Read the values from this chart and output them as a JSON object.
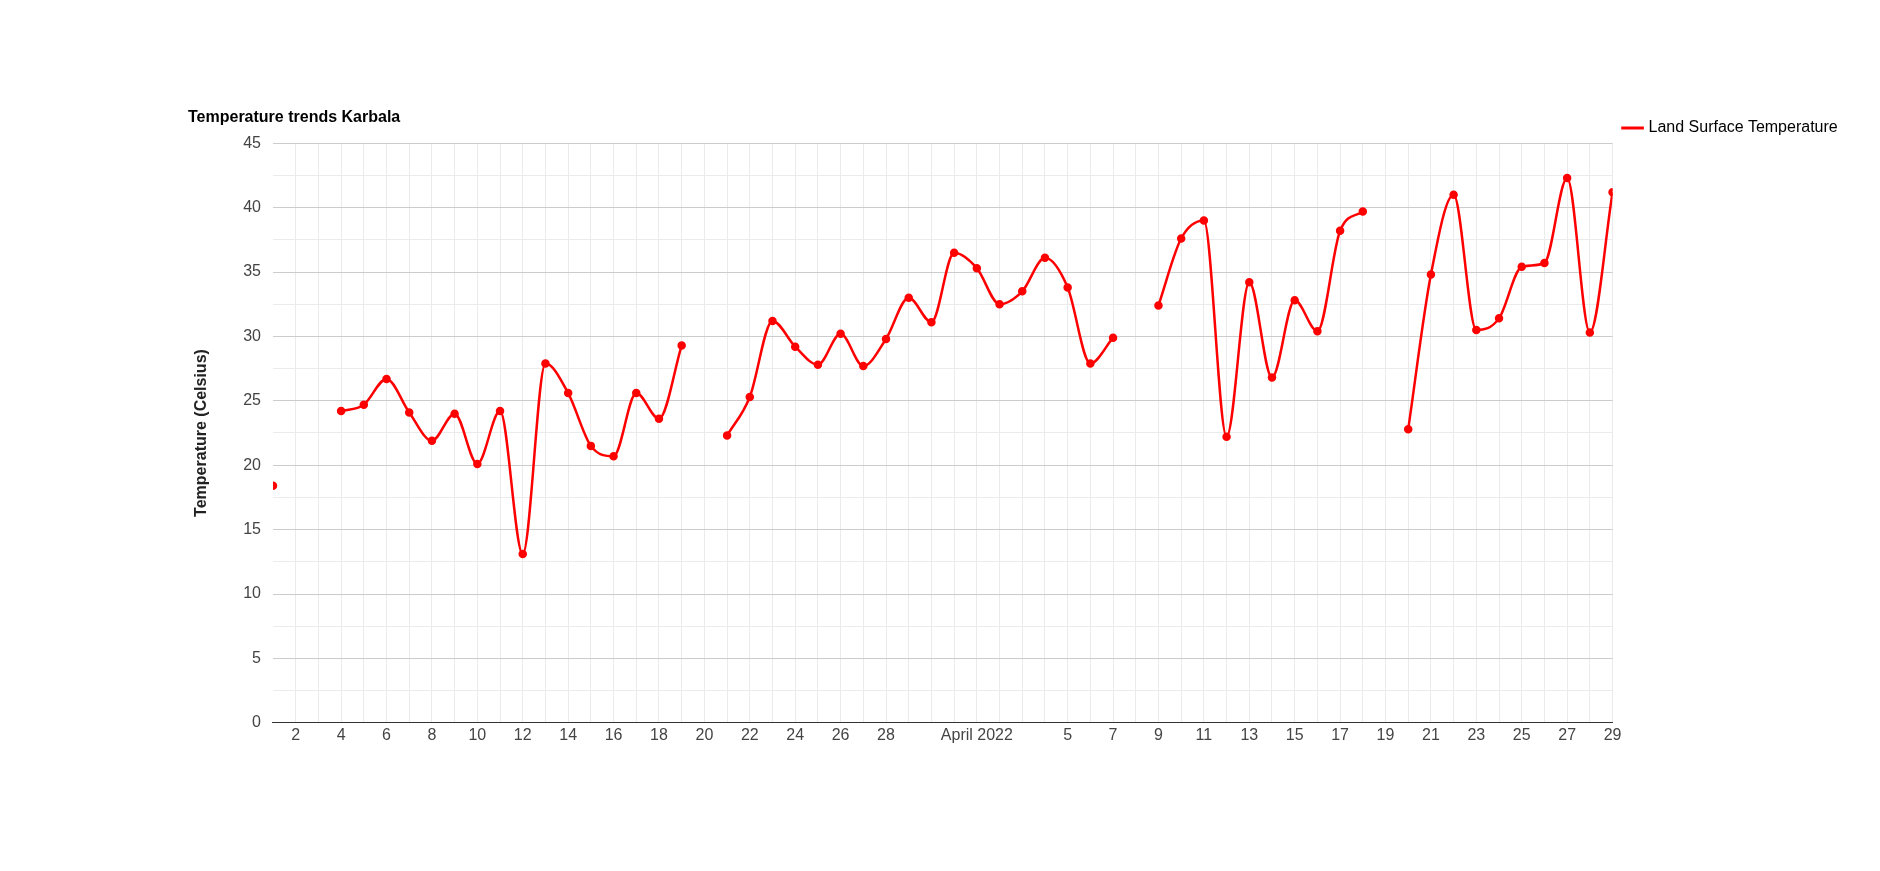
{
  "chart_data": {
    "type": "line",
    "title": "Temperature trends Karbala",
    "ylabel": "Temperature (Celsius)",
    "x": [
      "2022-03-01",
      "2022-03-02",
      "2022-03-03",
      "2022-03-04",
      "2022-03-05",
      "2022-03-06",
      "2022-03-07",
      "2022-03-08",
      "2022-03-09",
      "2022-03-10",
      "2022-03-11",
      "2022-03-12",
      "2022-03-13",
      "2022-03-14",
      "2022-03-15",
      "2022-03-16",
      "2022-03-17",
      "2022-03-18",
      "2022-03-19",
      "2022-03-20",
      "2022-03-21",
      "2022-03-22",
      "2022-03-23",
      "2022-03-24",
      "2022-03-25",
      "2022-03-26",
      "2022-03-27",
      "2022-03-28",
      "2022-03-29",
      "2022-03-30",
      "2022-03-31",
      "2022-04-01",
      "2022-04-02",
      "2022-04-03",
      "2022-04-04",
      "2022-04-05",
      "2022-04-06",
      "2022-04-07",
      "2022-04-08",
      "2022-04-09",
      "2022-04-10",
      "2022-04-11",
      "2022-04-12",
      "2022-04-13",
      "2022-04-14",
      "2022-04-15",
      "2022-04-16",
      "2022-04-17",
      "2022-04-18",
      "2022-04-19",
      "2022-04-20",
      "2022-04-21",
      "2022-04-22",
      "2022-04-23",
      "2022-04-24",
      "2022-04-25",
      "2022-04-26",
      "2022-04-27",
      "2022-04-28",
      "2022-04-29"
    ],
    "series": [
      {
        "name": "Land Surface Temperature",
        "color": "#ff0000",
        "values": [
          18.4,
          null,
          null,
          24.2,
          24.7,
          26.7,
          24.1,
          21.9,
          24.0,
          20.1,
          24.2,
          13.1,
          27.9,
          25.6,
          21.5,
          20.7,
          25.6,
          23.6,
          29.3,
          null,
          22.3,
          25.3,
          31.2,
          29.2,
          27.8,
          30.2,
          27.7,
          29.8,
          33.0,
          31.1,
          36.5,
          35.3,
          32.5,
          33.5,
          36.1,
          33.8,
          27.9,
          29.9,
          null,
          32.4,
          37.6,
          39.0,
          22.2,
          34.2,
          26.8,
          32.8,
          30.4,
          38.2,
          39.7,
          null,
          22.8,
          34.8,
          41.0,
          30.5,
          31.4,
          35.4,
          35.7,
          42.3,
          30.3,
          41.2
        ]
      }
    ],
    "xlim": [
      "2022-03-01",
      "2022-04-29"
    ],
    "xticks": [
      {
        "value": "2022-03-02",
        "label": "2"
      },
      {
        "value": "2022-03-03",
        "label": null
      },
      {
        "value": "2022-03-04",
        "label": "4"
      },
      {
        "value": "2022-03-05",
        "label": null
      },
      {
        "value": "2022-03-06",
        "label": "6"
      },
      {
        "value": "2022-03-07",
        "label": null
      },
      {
        "value": "2022-03-08",
        "label": "8"
      },
      {
        "value": "2022-03-09",
        "label": null
      },
      {
        "value": "2022-03-10",
        "label": "10"
      },
      {
        "value": "2022-03-11",
        "label": null
      },
      {
        "value": "2022-03-12",
        "label": "12"
      },
      {
        "value": "2022-03-13",
        "label": null
      },
      {
        "value": "2022-03-14",
        "label": "14"
      },
      {
        "value": "2022-03-15",
        "label": null
      },
      {
        "value": "2022-03-16",
        "label": "16"
      },
      {
        "value": "2022-03-17",
        "label": null
      },
      {
        "value": "2022-03-18",
        "label": "18"
      },
      {
        "value": "2022-03-19",
        "label": null
      },
      {
        "value": "2022-03-20",
        "label": "20"
      },
      {
        "value": "2022-03-21",
        "label": null
      },
      {
        "value": "2022-03-22",
        "label": "22"
      },
      {
        "value": "2022-03-23",
        "label": null
      },
      {
        "value": "2022-03-24",
        "label": "24"
      },
      {
        "value": "2022-03-25",
        "label": null
      },
      {
        "value": "2022-03-26",
        "label": "26"
      },
      {
        "value": "2022-03-27",
        "label": null
      },
      {
        "value": "2022-03-28",
        "label": "28"
      },
      {
        "value": "2022-03-29",
        "label": null
      },
      {
        "value": "2022-03-30",
        "label": null
      },
      {
        "value": "2022-03-31",
        "label": null
      },
      {
        "value": "2022-04-01",
        "label": "April 2022"
      },
      {
        "value": "2022-04-02",
        "label": null
      },
      {
        "value": "2022-04-03",
        "label": null
      },
      {
        "value": "2022-04-04",
        "label": null
      },
      {
        "value": "2022-04-05",
        "label": "5"
      },
      {
        "value": "2022-04-06",
        "label": null
      },
      {
        "value": "2022-04-07",
        "label": "7"
      },
      {
        "value": "2022-04-08",
        "label": null
      },
      {
        "value": "2022-04-09",
        "label": "9"
      },
      {
        "value": "2022-04-10",
        "label": null
      },
      {
        "value": "2022-04-11",
        "label": "11"
      },
      {
        "value": "2022-04-12",
        "label": null
      },
      {
        "value": "2022-04-13",
        "label": "13"
      },
      {
        "value": "2022-04-14",
        "label": null
      },
      {
        "value": "2022-04-15",
        "label": "15"
      },
      {
        "value": "2022-04-16",
        "label": null
      },
      {
        "value": "2022-04-17",
        "label": "17"
      },
      {
        "value": "2022-04-18",
        "label": null
      },
      {
        "value": "2022-04-19",
        "label": "19"
      },
      {
        "value": "2022-04-20",
        "label": null
      },
      {
        "value": "2022-04-21",
        "label": "21"
      },
      {
        "value": "2022-04-22",
        "label": null
      },
      {
        "value": "2022-04-23",
        "label": "23"
      },
      {
        "value": "2022-04-24",
        "label": null
      },
      {
        "value": "2022-04-25",
        "label": "25"
      },
      {
        "value": "2022-04-26",
        "label": null
      },
      {
        "value": "2022-04-27",
        "label": "27"
      },
      {
        "value": "2022-04-28",
        "label": null
      },
      {
        "value": "2022-04-29",
        "label": "29"
      }
    ],
    "ylim": [
      0,
      45
    ],
    "yticks": [
      0,
      {
        "value": 2.5,
        "label": null
      },
      5,
      {
        "value": 7.5,
        "label": null
      },
      10,
      {
        "value": 12.5,
        "label": null
      },
      15,
      {
        "value": 17.5,
        "label": null
      },
      20,
      {
        "value": 22.5,
        "label": null
      },
      25,
      {
        "value": 27.5,
        "label": null
      },
      30,
      {
        "value": 32.5,
        "label": null
      },
      35,
      {
        "value": 37.5,
        "label": null
      },
      40,
      {
        "value": 42.5,
        "label": null
      },
      45
    ],
    "grid": true,
    "legend": "top right",
    "marker": "circle",
    "line_style": "solid"
  }
}
